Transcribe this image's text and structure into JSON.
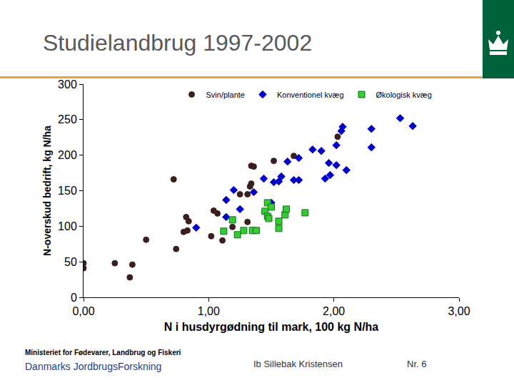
{
  "chart_data": {
    "type": "scatter",
    "title": "Studielandbrug 1997-2002",
    "x_label": "N i husdyrgødning til mark, 100 kg N/ha",
    "y_label": "N-overskud bedrift, kg N/ha",
    "xlim": [
      0,
      3
    ],
    "xticks": [
      {
        "value": 0,
        "label": "0,00"
      },
      {
        "value": 1,
        "label": "1,00"
      },
      {
        "value": 2,
        "label": "2,00"
      },
      {
        "value": 3,
        "label": "3,00"
      }
    ],
    "ylim": [
      0,
      300
    ],
    "yticks": [
      0,
      50,
      100,
      150,
      200,
      250,
      300
    ],
    "grid": false,
    "legend": "top",
    "series": [
      {
        "name": "Svin/plante",
        "color": "#3b1e1e",
        "marker": "circle",
        "x": [
          0.0,
          0.0,
          0.25,
          0.39,
          0.37,
          0.5,
          0.72,
          0.74,
          0.8,
          0.82,
          0.84,
          0.83,
          1.02,
          1.04,
          1.07,
          1.11,
          1.19,
          1.25,
          1.31,
          1.31,
          1.34,
          1.36,
          1.34,
          1.33,
          1.52,
          1.68,
          2.03
        ],
        "values": [
          48,
          41,
          48,
          46,
          28,
          81,
          166,
          68,
          92,
          113,
          107,
          94,
          86,
          122,
          118,
          80,
          99,
          145,
          145,
          106,
          185,
          184,
          160,
          156,
          192,
          199,
          226
        ]
      },
      {
        "name": "Konventionel kvæg",
        "color": "#0000cc",
        "marker": "diamond",
        "x": [
          2.53,
          2.63,
          2.3,
          2.3,
          2.07,
          2.06,
          2.02,
          2.1,
          2.02,
          1.96,
          1.97,
          1.93,
          1.9,
          1.83,
          1.72,
          1.72,
          1.68,
          1.63,
          1.58,
          1.56,
          1.44,
          1.52,
          1.36,
          1.2,
          1.14,
          1.25,
          1.14,
          0.9,
          1.5
        ],
        "values": [
          252,
          241,
          237,
          211,
          240,
          234,
          214,
          179,
          186,
          189,
          172,
          167,
          206,
          208,
          196,
          165,
          165,
          191,
          170,
          163,
          167,
          162,
          148,
          151,
          137,
          124,
          113,
          98,
          133
        ]
      },
      {
        "name": "Økologisk kvæg",
        "color": "#33cc33",
        "marker": "square",
        "x": [
          1.47,
          1.5,
          1.45,
          1.47,
          1.48,
          1.56,
          1.56,
          1.61,
          1.62,
          1.77,
          1.19,
          1.12,
          1.23,
          1.28,
          1.35,
          1.38
        ],
        "values": [
          133,
          127,
          121,
          114,
          111,
          107,
          97,
          116,
          124,
          119,
          109,
          93,
          88,
          94,
          94,
          94
        ]
      }
    ]
  },
  "footer": {
    "ministry": "Ministeriet for Fødevarer, Landbrug og Fiskeri",
    "institute": "Danmarks JordbrugsForskning",
    "author": "Ib Sillebak Kristensen",
    "slide_number": "Nr. 6"
  }
}
